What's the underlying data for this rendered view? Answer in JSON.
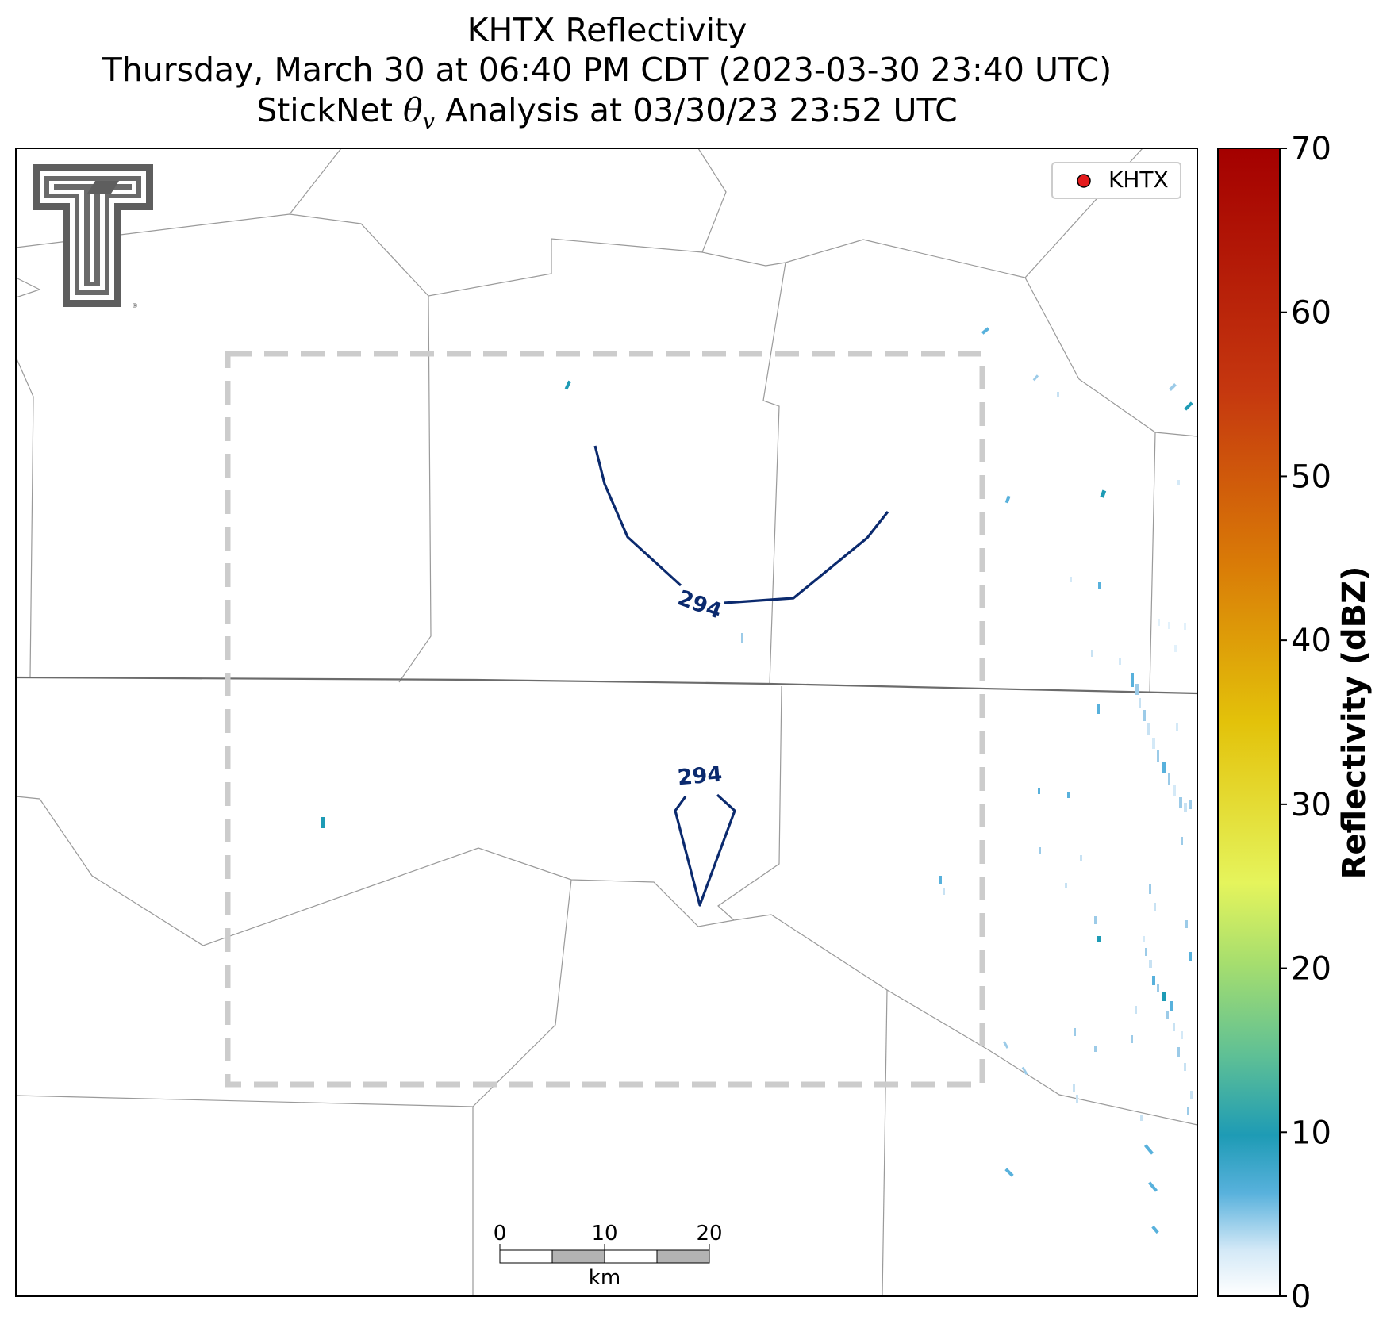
{
  "title": {
    "line1": "KHTX Reflectivity",
    "line2": "Thursday, March 30 at 06:40 PM CDT (2023-03-30 23:40 UTC)",
    "line3_prefix": "StickNet ",
    "line3_theta": "θ",
    "line3_sub": "v",
    "line3_suffix": " Analysis at 03/30/23 23:52 UTC"
  },
  "legend": {
    "label": "KHTX",
    "marker_color": "#e41a1c"
  },
  "logo": {
    "name": "Texas Tech Double T"
  },
  "colorbar": {
    "label": "Reflectivity (dBZ)",
    "min": 0,
    "max": 70,
    "ticks": [
      "0",
      "10",
      "20",
      "30",
      "40",
      "50",
      "60",
      "70"
    ],
    "colormap": "white-blue-teal-green-yellow-orange-red"
  },
  "contours": {
    "labels": [
      "294",
      "294"
    ],
    "color": "#0b2a6e"
  },
  "scale_bar": {
    "unit": "km",
    "ticks": [
      "0",
      "10",
      "20"
    ]
  },
  "colors": {
    "analysis_box": "#cccccc",
    "state_border": "#666666",
    "county_lines": "#999999"
  }
}
